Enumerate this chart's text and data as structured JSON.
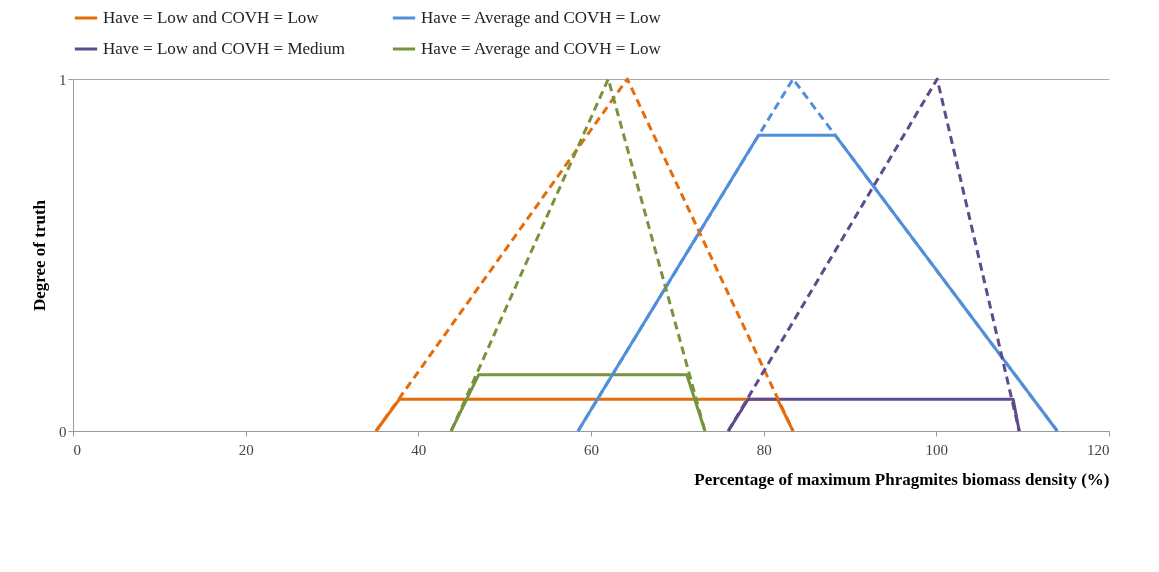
{
  "chart_data": {
    "type": "line",
    "xlabel": "Percentage of maximum Phragmites biomass density (%)",
    "ylabel": "Degree of truth",
    "xlim": [
      0,
      120
    ],
    "xticks": [
      0,
      20,
      40,
      60,
      80,
      100,
      120
    ],
    "ylim": [
      0,
      1
    ],
    "yticks": [
      0,
      1
    ],
    "grid": "y",
    "legend": "top",
    "marker": "none",
    "series": [
      {
        "name": "Have = Low and COVH  = Low",
        "color": "#e46c0a",
        "line_style": "solid",
        "x": [
          35.1,
          37.8,
          81.6,
          83.4
        ],
        "values": [
          0,
          0.09,
          0.09,
          0
        ]
      },
      {
        "name": "Have = Average and COVH = Low",
        "color": "#4f8fdc",
        "line_style": "solid",
        "x": [
          58.5,
          79.4,
          88.3,
          114
        ],
        "values": [
          0,
          0.84,
          0.84,
          0
        ]
      },
      {
        "name": "Have = Low and COVH = Medium",
        "color": "#5f4b8b",
        "line_style": "solid",
        "x": [
          75.9,
          78.2,
          108.9,
          109.6
        ],
        "values": [
          0,
          0.09,
          0.09,
          0
        ]
      },
      {
        "name": "Have = Average and COVH = Low",
        "color": "#77933c",
        "line_style": "solid",
        "x": [
          43.8,
          47,
          71.1,
          73.2
        ],
        "values": [
          0,
          0.16,
          0.16,
          0
        ]
      },
      {
        "color": "#e46c0a",
        "line_style": "dashed",
        "x": [
          35.1,
          64.2,
          83.4
        ],
        "values": [
          0,
          1,
          0
        ]
      },
      {
        "color": "#4f8fdc",
        "line_style": "dashed",
        "x": [
          58.5,
          83.4,
          114
        ],
        "values": [
          0,
          1,
          0
        ]
      },
      {
        "color": "#5f4b8b",
        "line_style": "dashed",
        "x": [
          75.9,
          100.1,
          109.6
        ],
        "values": [
          0,
          1,
          0
        ]
      },
      {
        "color": "#77933c",
        "line_style": "dashed",
        "x": [
          43.8,
          62,
          73.2
        ],
        "values": [
          0,
          1,
          0
        ]
      }
    ]
  }
}
